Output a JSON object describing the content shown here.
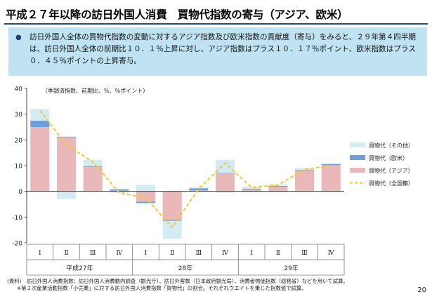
{
  "page": {
    "title": "平成２７年以降の訪日外国人消費　買物代指数の寄与（アジア、欧米）",
    "summary": "訪日外国人全体の買物代指数の変動に対するアジア指数及び欧米指数の貢献度（寄与）をみると、２９年第４四半期は、訪日外国人全体の前期比１０．１％上昇に対し、アジア指数はプラス１０．１７％ポイント、欧米指数はプラス０．４５％ポイントの上昇寄与。",
    "notes": [
      "(資料)　訪日外国人消費指数：訪日外国人消費動向調査（観光庁）、訪日外客数（日本政府観光局）、消費者物価指数（総務省）などを用いて試算。",
      "※第３次産業活動指数「小売業」に対する訪日外国人消費指数「買物代」の割合。それぞれウエイトを乗じた指数値で試算。"
    ],
    "page_number": "20",
    "colors": {
      "title_rule": "#1f4e79",
      "summary_bg": "#bfe3f2",
      "other": "#d3ecf4",
      "western": "#6f9fd8",
      "asia": "#eab8b8",
      "total": "#f5c633"
    }
  },
  "chart_data": {
    "type": "bar",
    "stacked": true,
    "annotation": "（季調済指数、前期比、%、%ポイント）",
    "ylim": [
      -20,
      40
    ],
    "yticks": [
      40,
      30,
      20,
      10,
      0,
      -10,
      -20
    ],
    "quarter_labels": [
      "Ⅰ",
      "Ⅱ",
      "Ⅲ",
      "Ⅳ",
      "Ⅰ",
      "Ⅱ",
      "Ⅲ",
      "Ⅳ",
      "Ⅰ",
      "Ⅱ",
      "Ⅲ",
      "Ⅳ"
    ],
    "year_labels": [
      {
        "label": "平成27年",
        "start": 0,
        "end": 3
      },
      {
        "label": "28年",
        "start": 4,
        "end": 7
      },
      {
        "label": "29年",
        "start": 8,
        "end": 11
      }
    ],
    "series": [
      {
        "name": "買物代（その他）",
        "kind": "bar",
        "color": "#d3ecf4",
        "values": [
          4.5,
          0.2,
          2.5,
          0.3,
          2.5,
          -3.5,
          0.5,
          5.0,
          0.8,
          0.6,
          0.7,
          0.3
        ]
      },
      {
        "name": "買物代（欧米）",
        "kind": "bar",
        "color": "#6f9fd8",
        "values": [
          2.5,
          0.2,
          0.3,
          0.5,
          -0.5,
          -0.4,
          0.8,
          0.2,
          0.3,
          0.3,
          0.2,
          0.45
        ]
      },
      {
        "name": "買物代（アジア）",
        "kind": "bar",
        "color": "#eab8b8",
        "values": [
          25.0,
          21.0,
          9.5,
          0.3,
          -4.0,
          -11.0,
          0.4,
          7.0,
          0.7,
          1.8,
          8.2,
          10.17
        ]
      },
      {
        "name": "買物代（全国籍）",
        "kind": "line",
        "color": "#f5c633",
        "values": [
          31.5,
          18.0,
          11.5,
          -0.5,
          -2.5,
          -14.0,
          1.0,
          11.0,
          1.5,
          2.5,
          8.5,
          10.1
        ]
      }
    ],
    "negative_parts": {
      "other": [
        0,
        -3.0,
        0,
        -0.5,
        -0.5,
        -3.5,
        0,
        -0.5,
        -0.3,
        -0.3,
        -0.2,
        -0.2
      ]
    },
    "legend_position": "right",
    "legend_order": [
      "買物代（その他）",
      "買物代（欧米）",
      "買物代（アジア）",
      "買物代（全国籍）"
    ],
    "grid": false
  }
}
